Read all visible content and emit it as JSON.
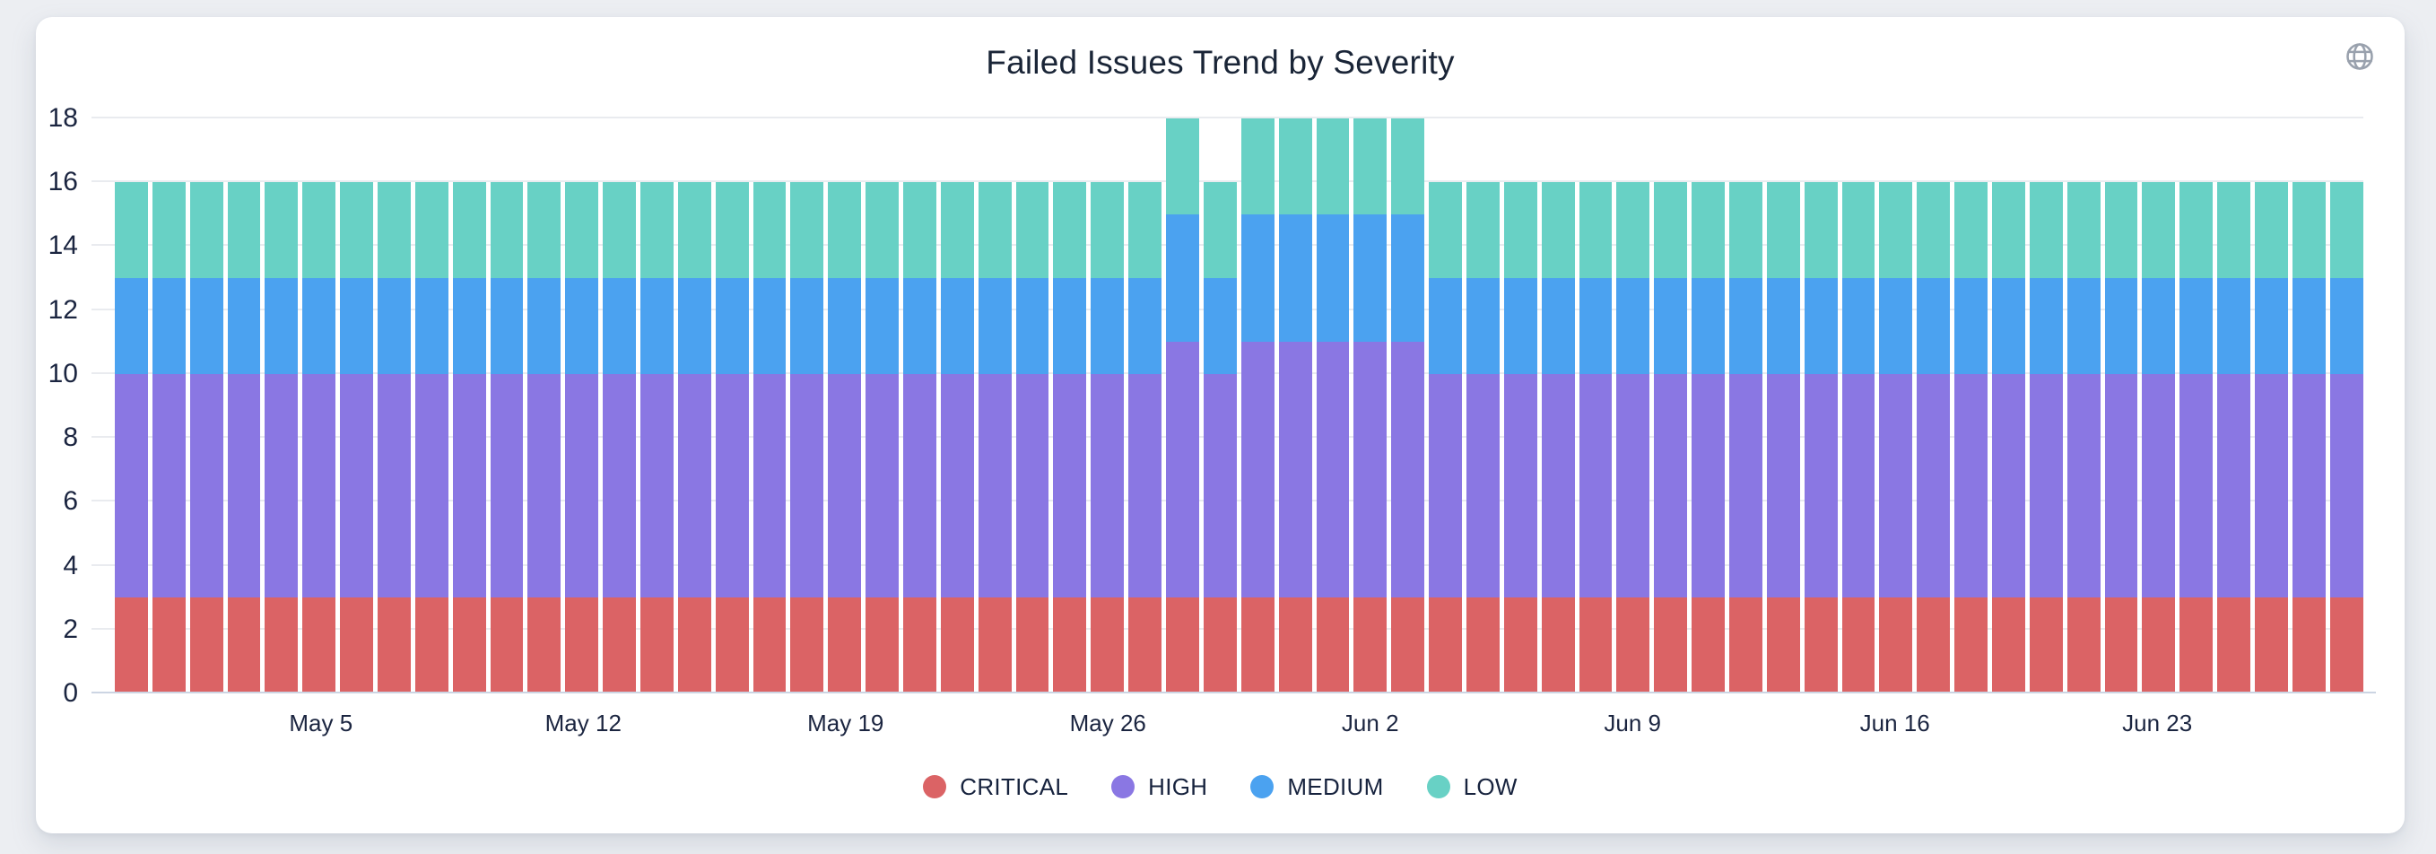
{
  "card": {
    "title": "Failed Issues Trend by Severity",
    "header_icon": "globe-icon"
  },
  "colors": {
    "grid": "#e9ebef",
    "axis_line": "#ccd5e3",
    "axis_text": "#1b2540",
    "icon": "#99a1ad"
  },
  "chart_data": {
    "type": "bar",
    "stacked": true,
    "title": "Failed Issues Trend by Severity",
    "xlabel": "",
    "ylabel": "",
    "ylim": [
      0,
      18
    ],
    "y_ticks": [
      0,
      2,
      4,
      6,
      8,
      10,
      12,
      14,
      16,
      18
    ],
    "grid": true,
    "legend_position": "bottom",
    "x": [
      "Apr 30",
      "May 1",
      "May 2",
      "May 3",
      "May 4",
      "May 5",
      "May 6",
      "May 7",
      "May 8",
      "May 9",
      "May 10",
      "May 11",
      "May 12",
      "May 13",
      "May 14",
      "May 15",
      "May 16",
      "May 17",
      "May 18",
      "May 19",
      "May 20",
      "May 21",
      "May 22",
      "May 23",
      "May 24",
      "May 25",
      "May 26",
      "May 27",
      "May 28",
      "May 29",
      "May 30",
      "May 31",
      "Jun 1",
      "Jun 2",
      "Jun 3",
      "Jun 4",
      "Jun 5",
      "Jun 6",
      "Jun 7",
      "Jun 8",
      "Jun 9",
      "Jun 10",
      "Jun 11",
      "Jun 12",
      "Jun 13",
      "Jun 14",
      "Jun 15",
      "Jun 16",
      "Jun 17",
      "Jun 18",
      "Jun 19",
      "Jun 20",
      "Jun 21",
      "Jun 22",
      "Jun 23",
      "Jun 24",
      "Jun 25",
      "Jun 26",
      "Jun 27",
      "Jun 28"
    ],
    "x_ticks": [
      {
        "label": "May 5",
        "index": 5
      },
      {
        "label": "May 12",
        "index": 12
      },
      {
        "label": "May 19",
        "index": 19
      },
      {
        "label": "May 26",
        "index": 26
      },
      {
        "label": "Jun 2",
        "index": 33
      },
      {
        "label": "Jun 9",
        "index": 40
      },
      {
        "label": "Jun 16",
        "index": 47
      },
      {
        "label": "Jun 23",
        "index": 54
      }
    ],
    "series": [
      {
        "name": "CRITICAL",
        "color": "#DB6365",
        "values": [
          3,
          3,
          3,
          3,
          3,
          3,
          3,
          3,
          3,
          3,
          3,
          3,
          3,
          3,
          3,
          3,
          3,
          3,
          3,
          3,
          3,
          3,
          3,
          3,
          3,
          3,
          3,
          3,
          3,
          3,
          3,
          3,
          3,
          3,
          3,
          3,
          3,
          3,
          3,
          3,
          3,
          3,
          3,
          3,
          3,
          3,
          3,
          3,
          3,
          3,
          3,
          3,
          3,
          3,
          3,
          3,
          3,
          3,
          3,
          3
        ]
      },
      {
        "name": "HIGH",
        "color": "#8A77E3",
        "values": [
          7,
          7,
          7,
          7,
          7,
          7,
          7,
          7,
          7,
          7,
          7,
          7,
          7,
          7,
          7,
          7,
          7,
          7,
          7,
          7,
          7,
          7,
          7,
          7,
          7,
          7,
          7,
          7,
          8,
          7,
          8,
          8,
          8,
          8,
          8,
          7,
          7,
          7,
          7,
          7,
          7,
          7,
          7,
          7,
          7,
          7,
          7,
          7,
          7,
          7,
          7,
          7,
          7,
          7,
          7,
          7,
          7,
          7,
          7,
          7
        ]
      },
      {
        "name": "MEDIUM",
        "color": "#4BA2F0",
        "values": [
          3,
          3,
          3,
          3,
          3,
          3,
          3,
          3,
          3,
          3,
          3,
          3,
          3,
          3,
          3,
          3,
          3,
          3,
          3,
          3,
          3,
          3,
          3,
          3,
          3,
          3,
          3,
          3,
          4,
          3,
          4,
          4,
          4,
          4,
          4,
          3,
          3,
          3,
          3,
          3,
          3,
          3,
          3,
          3,
          3,
          3,
          3,
          3,
          3,
          3,
          3,
          3,
          3,
          3,
          3,
          3,
          3,
          3,
          3,
          3
        ]
      },
      {
        "name": "LOW",
        "color": "#68D1C5",
        "values": [
          3,
          3,
          3,
          3,
          3,
          3,
          3,
          3,
          3,
          3,
          3,
          3,
          3,
          3,
          3,
          3,
          3,
          3,
          3,
          3,
          3,
          3,
          3,
          3,
          3,
          3,
          3,
          3,
          3,
          3,
          3,
          3,
          3,
          3,
          3,
          3,
          3,
          3,
          3,
          3,
          3,
          3,
          3,
          3,
          3,
          3,
          3,
          3,
          3,
          3,
          3,
          3,
          3,
          3,
          3,
          3,
          3,
          3,
          3,
          3
        ]
      }
    ]
  }
}
